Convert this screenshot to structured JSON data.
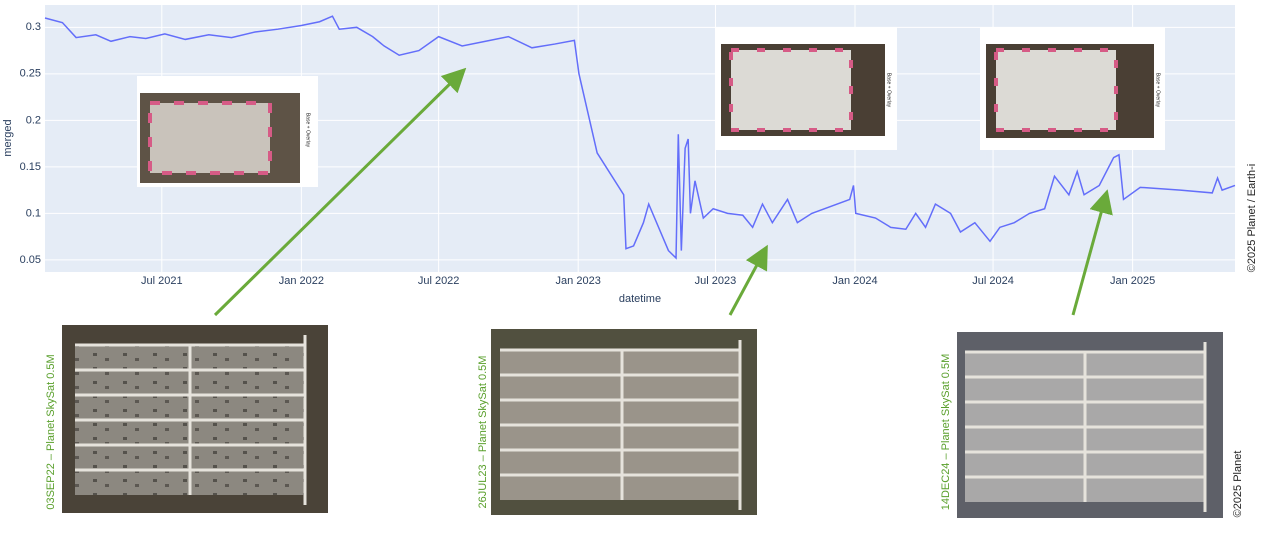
{
  "chart_data": {
    "type": "line",
    "x_label": "datetime",
    "y_label": "merged",
    "xlim": [
      "2021-01-28",
      "2025-05-16"
    ],
    "ylim": [
      0.037,
      0.324
    ],
    "xticks": [
      {
        "value": "2021-07-01",
        "label": "Jul 2021"
      },
      {
        "value": "2022-01-01",
        "label": "Jan 2022"
      },
      {
        "value": "2022-07-01",
        "label": "Jul 2022"
      },
      {
        "value": "2023-01-01",
        "label": "Jan 2023"
      },
      {
        "value": "2023-07-01",
        "label": "Jul 2023"
      },
      {
        "value": "2024-01-01",
        "label": "Jan 2024"
      },
      {
        "value": "2024-07-01",
        "label": "Jul 2024"
      },
      {
        "value": "2025-01-01",
        "label": "Jan 2025"
      }
    ],
    "yticks": [
      0.05,
      0.1,
      0.15,
      0.2,
      0.25,
      0.3
    ],
    "grid": true,
    "x": [
      "2021-01-28",
      "2021-02-20",
      "2021-03-10",
      "2021-04-05",
      "2021-04-25",
      "2021-05-20",
      "2021-06-10",
      "2021-07-05",
      "2021-08-01",
      "2021-09-01",
      "2021-10-01",
      "2021-11-01",
      "2021-12-01",
      "2022-01-01",
      "2022-01-25",
      "2022-02-11",
      "2022-02-20",
      "2022-03-15",
      "2022-04-05",
      "2022-04-20",
      "2022-05-10",
      "2022-06-05",
      "2022-07-01",
      "2022-08-01",
      "2022-09-01",
      "2022-10-01",
      "2022-11-01",
      "2022-12-01",
      "2022-12-27",
      "2023-01-02",
      "2023-01-26",
      "2023-03-02",
      "2023-03-05",
      "2023-03-15",
      "2023-03-28",
      "2023-04-04",
      "2023-04-30",
      "2023-05-10",
      "2023-05-13",
      "2023-05-17",
      "2023-05-22",
      "2023-05-26",
      "2023-05-29",
      "2023-06-04",
      "2023-06-15",
      "2023-06-28",
      "2023-07-17",
      "2023-08-06",
      "2023-08-19",
      "2023-09-01",
      "2023-09-14",
      "2023-10-04",
      "2023-10-17",
      "2023-11-05",
      "2023-12-25",
      "2023-12-30",
      "2024-01-02",
      "2024-01-28",
      "2024-02-17",
      "2024-03-08",
      "2024-03-21",
      "2024-04-03",
      "2024-04-16",
      "2024-05-06",
      "2024-05-19",
      "2024-06-07",
      "2024-06-27",
      "2024-07-10",
      "2024-07-29",
      "2024-08-18",
      "2024-09-07",
      "2024-09-20",
      "2024-10-09",
      "2024-10-20",
      "2024-10-29",
      "2024-11-18",
      "2024-12-07",
      "2024-12-14",
      "2024-12-20",
      "2025-01-11",
      "2025-03-05",
      "2025-04-16",
      "2025-04-23",
      "2025-04-29",
      "2025-05-16"
    ],
    "series": [
      {
        "name": "merged",
        "color": "#636efa",
        "values": [
          0.31,
          0.305,
          0.289,
          0.292,
          0.285,
          0.29,
          0.288,
          0.293,
          0.287,
          0.292,
          0.289,
          0.295,
          0.298,
          0.302,
          0.306,
          0.312,
          0.298,
          0.3,
          0.29,
          0.28,
          0.27,
          0.275,
          0.29,
          0.28,
          0.285,
          0.29,
          0.278,
          0.282,
          0.286,
          0.25,
          0.165,
          0.12,
          0.062,
          0.065,
          0.09,
          0.11,
          0.06,
          0.052,
          0.185,
          0.06,
          0.17,
          0.18,
          0.1,
          0.135,
          0.095,
          0.105,
          0.1,
          0.098,
          0.085,
          0.11,
          0.09,
          0.115,
          0.09,
          0.1,
          0.115,
          0.13,
          0.1,
          0.095,
          0.085,
          0.083,
          0.1,
          0.085,
          0.11,
          0.1,
          0.08,
          0.09,
          0.07,
          0.085,
          0.09,
          0.1,
          0.105,
          0.14,
          0.12,
          0.145,
          0.12,
          0.13,
          0.16,
          0.163,
          0.115,
          0.128,
          0.125,
          0.122,
          0.138,
          0.125,
          0.13
        ]
      }
    ],
    "inset_label": "Base + Overlay",
    "annotations": [
      "03SEP22 – Planet SkySat 0.5M",
      "26JUL23 – Planet SkySat 0.5M",
      "14DEC24 – Planet SkySat 0.5M"
    ],
    "credits": [
      "©2025 Planet / Earth-i",
      "©2025 Planet"
    ]
  }
}
